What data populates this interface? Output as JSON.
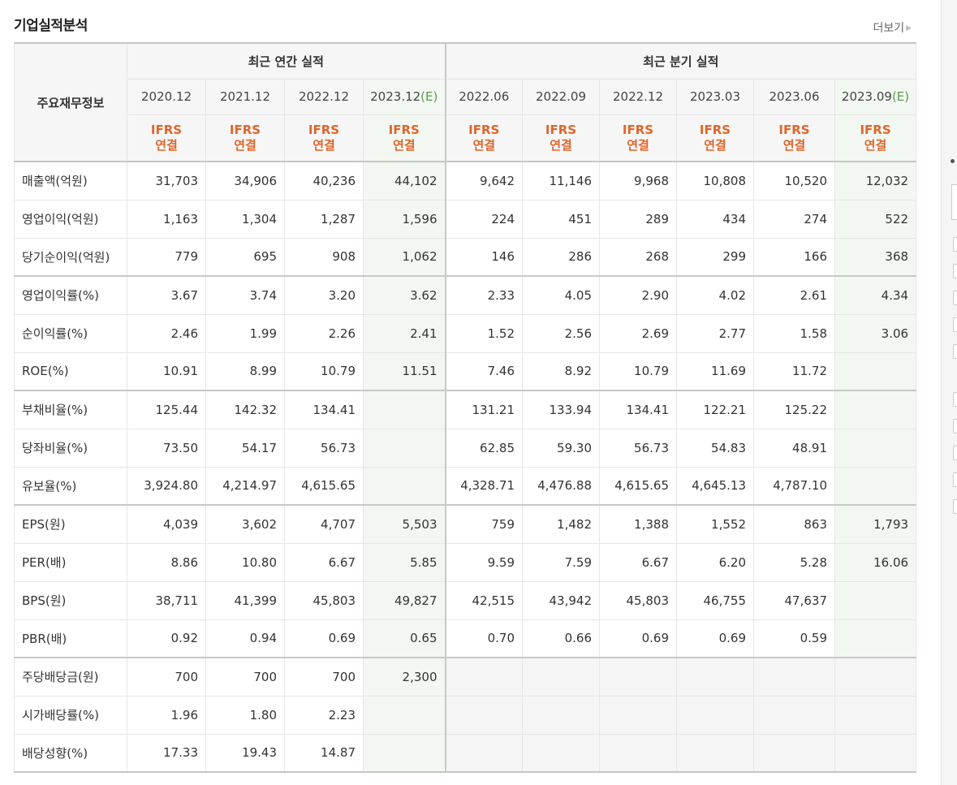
{
  "section": {
    "title": "기업실적분석",
    "more_label": "더보기"
  },
  "table": {
    "label_header": "주요재무정보",
    "group_annual": "최근 연간 실적",
    "group_quarter": "최근 분기 실적",
    "annual_periods": [
      "2020.12",
      "2021.12",
      "2022.12",
      "2023.12"
    ],
    "quarter_periods": [
      "2022.06",
      "2022.09",
      "2022.12",
      "2023.03",
      "2023.06",
      "2023.09"
    ],
    "estimate_mark": "(E)",
    "ifrs_line1": "IFRS",
    "ifrs_line2": "연결",
    "rows": [
      {
        "label": "매출액(억원)",
        "values": [
          "31,703",
          "34,906",
          "40,236",
          "44,102",
          "9,642",
          "11,146",
          "9,968",
          "10,808",
          "10,520",
          "12,032"
        ]
      },
      {
        "label": "영업이익(억원)",
        "values": [
          "1,163",
          "1,304",
          "1,287",
          "1,596",
          "224",
          "451",
          "289",
          "434",
          "274",
          "522"
        ]
      },
      {
        "label": "당기순이익(억원)",
        "values": [
          "779",
          "695",
          "908",
          "1,062",
          "146",
          "286",
          "268",
          "299",
          "166",
          "368"
        ]
      },
      {
        "label": "영업이익률(%)",
        "values": [
          "3.67",
          "3.74",
          "3.20",
          "3.62",
          "2.33",
          "4.05",
          "2.90",
          "4.02",
          "2.61",
          "4.34"
        ]
      },
      {
        "label": "순이익률(%)",
        "values": [
          "2.46",
          "1.99",
          "2.26",
          "2.41",
          "1.52",
          "2.56",
          "2.69",
          "2.77",
          "1.58",
          "3.06"
        ]
      },
      {
        "label": "ROE(%)",
        "values": [
          "10.91",
          "8.99",
          "10.79",
          "11.51",
          "7.46",
          "8.92",
          "10.79",
          "11.69",
          "11.72",
          ""
        ]
      },
      {
        "label": "부채비율(%)",
        "values": [
          "125.44",
          "142.32",
          "134.41",
          "",
          "131.21",
          "133.94",
          "134.41",
          "122.21",
          "125.22",
          ""
        ]
      },
      {
        "label": "당좌비율(%)",
        "values": [
          "73.50",
          "54.17",
          "56.73",
          "",
          "62.85",
          "59.30",
          "56.73",
          "54.83",
          "48.91",
          ""
        ]
      },
      {
        "label": "유보율(%)",
        "values": [
          "3,924.80",
          "4,214.97",
          "4,615.65",
          "",
          "4,328.71",
          "4,476.88",
          "4,615.65",
          "4,645.13",
          "4,787.10",
          ""
        ]
      },
      {
        "label": "EPS(원)",
        "values": [
          "4,039",
          "3,602",
          "4,707",
          "5,503",
          "759",
          "1,482",
          "1,388",
          "1,552",
          "863",
          "1,793"
        ]
      },
      {
        "label": "PER(배)",
        "values": [
          "8.86",
          "10.80",
          "6.67",
          "5.85",
          "9.59",
          "7.59",
          "6.67",
          "6.20",
          "5.28",
          "16.06"
        ]
      },
      {
        "label": "BPS(원)",
        "values": [
          "38,711",
          "41,399",
          "45,803",
          "49,827",
          "42,515",
          "43,942",
          "45,803",
          "46,755",
          "47,637",
          ""
        ]
      },
      {
        "label": "PBR(배)",
        "values": [
          "0.92",
          "0.94",
          "0.69",
          "0.65",
          "0.70",
          "0.66",
          "0.69",
          "0.69",
          "0.59",
          ""
        ]
      },
      {
        "label": "주당배당금(원)",
        "values": [
          "700",
          "700",
          "700",
          "2,300",
          "",
          "",
          "",
          "",
          "",
          ""
        ],
        "quarter_empty": true
      },
      {
        "label": "시가배당률(%)",
        "values": [
          "1.96",
          "1.80",
          "2.23",
          "",
          "",
          "",
          "",
          "",
          "",
          ""
        ],
        "quarter_empty": true
      },
      {
        "label": "배당성향(%)",
        "values": [
          "17.33",
          "19.43",
          "14.87",
          "",
          "",
          "",
          "",
          "",
          "",
          ""
        ],
        "quarter_empty": true
      }
    ],
    "separator_before_rows": [
      3,
      6,
      9,
      13
    ],
    "colors": {
      "ifrs_text": "#e0652a",
      "estimate_text": "#5a9a4a",
      "estimate_bg": "#f2f8f1",
      "header_bg": "#f6f6f6"
    }
  }
}
